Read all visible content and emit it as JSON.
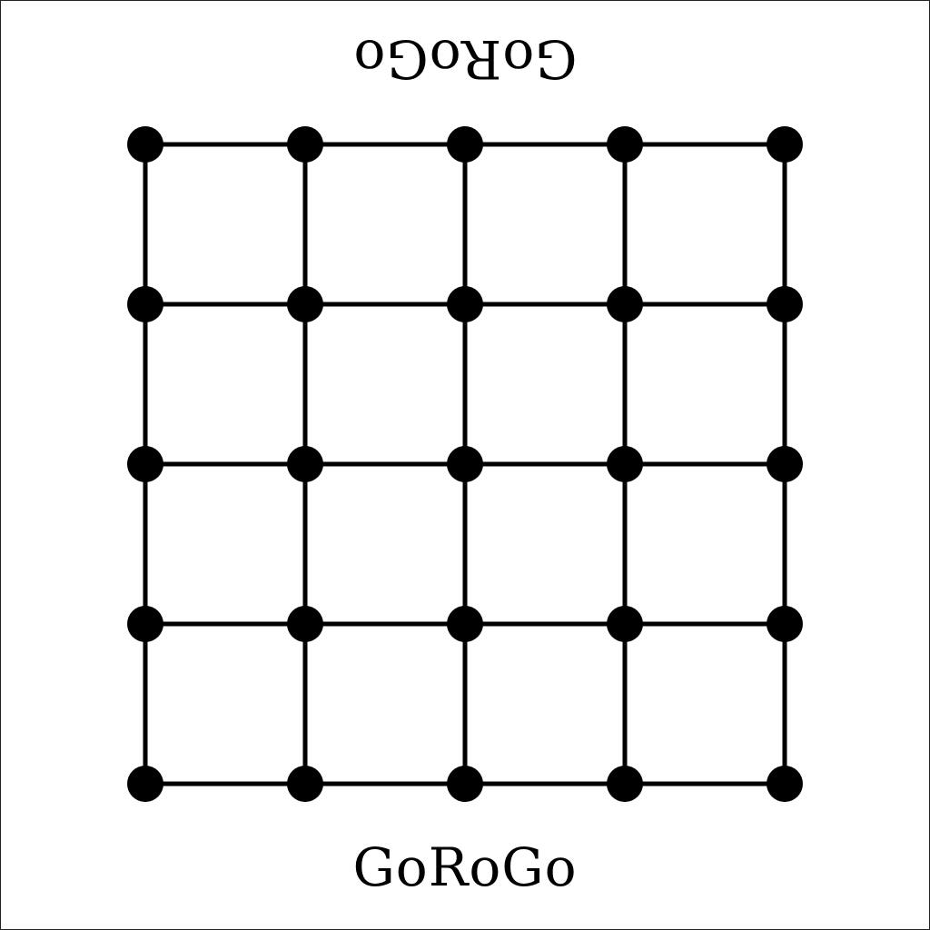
{
  "board": {
    "title_top": "GoRoGo",
    "title_bottom": "GoRoGo",
    "rows": 5,
    "columns": 5,
    "line_color": "#000000",
    "point_color": "#000000"
  }
}
